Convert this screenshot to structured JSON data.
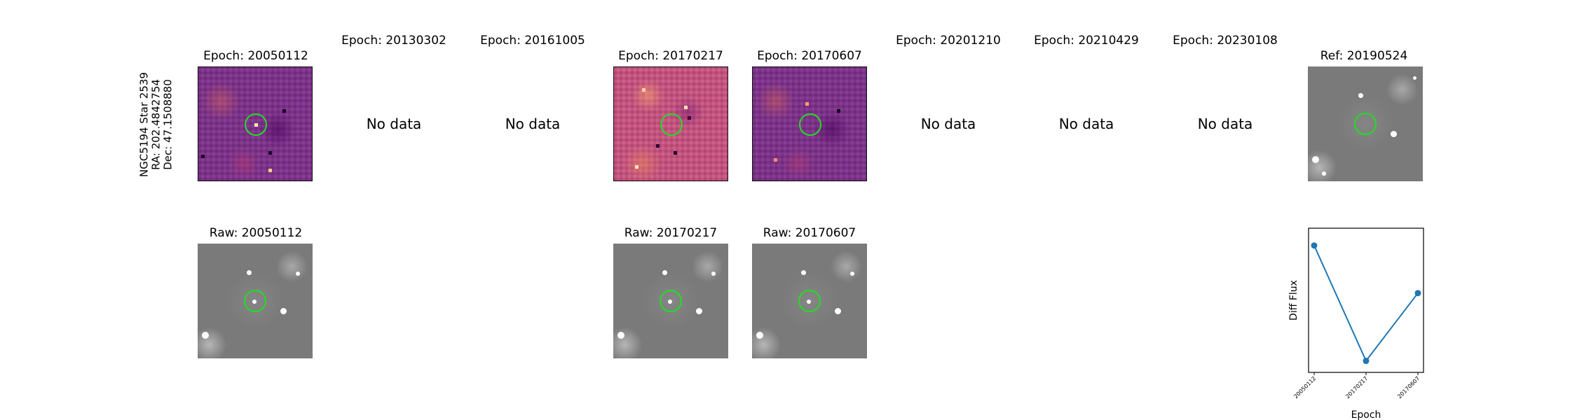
{
  "side_label": {
    "line1": "NGC5194 Star 2539",
    "line2": "RA: 202.4842754",
    "line3": "Dec: 47.1508880"
  },
  "top_titles": [
    "Epoch: 20050112",
    "Epoch: 20130302",
    "Epoch: 20161005",
    "Epoch: 20170217",
    "Epoch: 20170607",
    "Epoch: 20201210",
    "Epoch: 20210429",
    "Epoch: 20230108",
    "Ref: 20190524"
  ],
  "no_data_text": "No data",
  "bottom_titles": [
    "Raw: 20050112",
    "Raw: 20170217",
    "Raw: 20170607"
  ],
  "colors": {
    "aperture": "#22dd22",
    "line": "#1f77b4"
  },
  "chart_data": {
    "type": "line",
    "categories": [
      "20050112",
      "20170217",
      "20170607"
    ],
    "values": [
      0.88,
      0.08,
      0.55
    ],
    "xlabel": "Epoch",
    "ylabel": "Diff Flux",
    "ylim": [
      0,
      1
    ],
    "grid": false
  }
}
